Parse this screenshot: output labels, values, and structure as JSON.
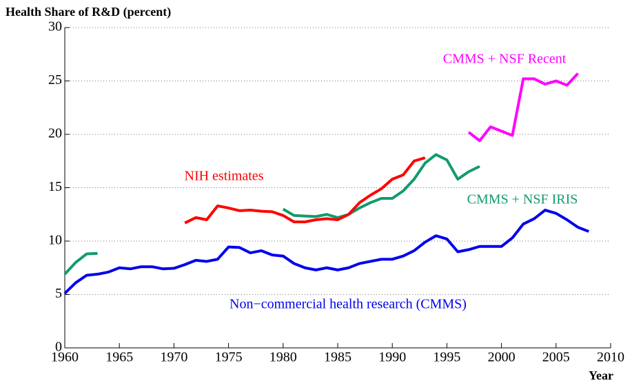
{
  "chart_data": {
    "type": "line",
    "ylabel": "Health Share of R&D (percent)",
    "xlabel": "Year",
    "xlim": [
      1960,
      2010
    ],
    "xticks": [
      1960,
      1965,
      1970,
      1975,
      1980,
      1985,
      1990,
      1995,
      2000,
      2005,
      2010
    ],
    "ylim": [
      0,
      30
    ],
    "yticks": [
      0,
      5,
      10,
      15,
      20,
      25,
      30
    ],
    "grid": true,
    "series": [
      {
        "name": "Non−commercial health research (CMMS)",
        "color": "#0000ee",
        "x": [
          1960,
          1961,
          1962,
          1963,
          1964,
          1965,
          1966,
          1967,
          1968,
          1969,
          1970,
          1971,
          1972,
          1973,
          1974,
          1975,
          1976,
          1977,
          1978,
          1979,
          1980,
          1981,
          1982,
          1983,
          1984,
          1985,
          1986,
          1987,
          1988,
          1989,
          1990,
          1991,
          1992,
          1993,
          1994,
          1995,
          1996,
          1997,
          1998,
          1999,
          2000,
          2001,
          2002,
          2003,
          2004,
          2005,
          2006,
          2007,
          2008
        ],
        "values": [
          5.1,
          6.1,
          6.8,
          6.9,
          7.1,
          7.5,
          7.4,
          7.6,
          7.6,
          7.4,
          7.45,
          7.8,
          8.2,
          8.1,
          8.3,
          9.45,
          9.4,
          8.9,
          9.1,
          8.7,
          8.6,
          7.9,
          7.5,
          7.3,
          7.5,
          7.3,
          7.5,
          7.9,
          8.1,
          8.3,
          8.3,
          8.6,
          9.1,
          9.9,
          10.5,
          10.2,
          9.0,
          9.2,
          9.5,
          9.5,
          9.5,
          10.3,
          11.6,
          12.1,
          12.9,
          12.6,
          12.0,
          11.3,
          10.9
        ]
      },
      {
        "name": "CMMS + NSF IRIS",
        "color": "#129b6b",
        "x": [
          1960,
          1961,
          1962,
          1963,
          1964,
          1980,
          1981,
          1982,
          1983,
          1984,
          1985,
          1986,
          1987,
          1988,
          1989,
          1990,
          1991,
          1992,
          1993,
          1994,
          1995,
          1996,
          1997,
          1998
        ],
        "values": [
          6.9,
          8.0,
          8.8,
          8.85,
          null,
          13.0,
          12.4,
          12.35,
          12.3,
          12.5,
          12.2,
          12.5,
          13.1,
          13.6,
          14.0,
          14.0,
          14.7,
          15.8,
          17.3,
          18.1,
          17.6,
          15.8,
          16.5,
          17.0
        ]
      },
      {
        "name": "NIH estimates",
        "color": "#ff0000",
        "x": [
          1971,
          1972,
          1973,
          1974,
          1975,
          1976,
          1977,
          1978,
          1979,
          1980,
          1981,
          1982,
          1983,
          1984,
          1985,
          1986,
          1987,
          1988,
          1989,
          1990,
          1991,
          1992,
          1993
        ],
        "values": [
          11.7,
          12.2,
          12.0,
          13.3,
          13.1,
          12.85,
          12.9,
          12.8,
          12.75,
          12.4,
          11.8,
          11.8,
          12.0,
          12.1,
          12.0,
          12.5,
          13.6,
          14.3,
          14.9,
          15.8,
          16.2,
          17.5,
          17.8
        ]
      },
      {
        "name": "CMMS + NSF Recent",
        "color": "#ff00ff",
        "x": [
          1997,
          1998,
          1999,
          2000,
          2001,
          2002,
          2003,
          2004,
          2005,
          2006,
          2007
        ],
        "values": [
          20.2,
          19.4,
          20.7,
          20.3,
          19.9,
          25.2,
          25.2,
          24.7,
          25.0,
          24.6,
          25.7
        ]
      }
    ]
  }
}
